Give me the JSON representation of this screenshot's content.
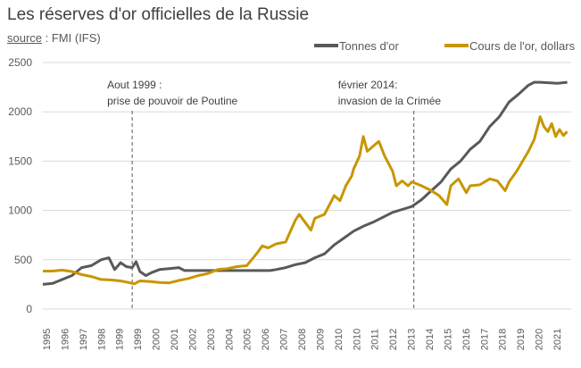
{
  "chart_data": {
    "type": "line",
    "title": "Les réserves d'or officielles de la Russie",
    "source_label": "source",
    "source_value": " : FMI (IFS)",
    "xlabel": "",
    "ylabel": "",
    "ylim": [
      0,
      2500
    ],
    "yticks": [
      0,
      500,
      1000,
      1500,
      2000,
      2500
    ],
    "xlim": [
      1995,
      2022.2
    ],
    "xtick_labels": [
      "1995",
      "1996",
      "1997",
      "1998",
      "1999",
      "1999",
      "2000",
      "2001",
      "2002",
      "2003",
      "2004",
      "2005",
      "2006",
      "2007",
      "2008",
      "2009",
      "2010",
      "2010",
      "2011",
      "2012",
      "2013",
      "2014",
      "2015",
      "2016",
      "2017",
      "2018",
      "2019",
      "2020",
      "2021"
    ],
    "grid": true,
    "legend_position": "top-right",
    "series": [
      {
        "name": "Tonnes d'or",
        "color": "#595959",
        "x": [
          1995,
          1995.5,
          1996,
          1996.5,
          1997,
          1997.5,
          1998,
          1998.4,
          1998.7,
          1999,
          1999.3,
          1999.6,
          1999.8,
          2000,
          2000.3,
          2000.6,
          2001,
          2001.5,
          2002,
          2002.3,
          2003,
          2004,
          2005,
          2006,
          2006.7,
          2007,
          2007.5,
          2008,
          2008.5,
          2009,
          2009.5,
          2010,
          2010.5,
          2011,
          2011.5,
          2012,
          2012.5,
          2013,
          2013.5,
          2014,
          2014.5,
          2015,
          2015.5,
          2016,
          2016.5,
          2017,
          2017.5,
          2018,
          2018.5,
          2019,
          2019.5,
          2020,
          2020.3,
          2020.6,
          2021,
          2021.5,
          2022
        ],
        "values": [
          250,
          260,
          300,
          340,
          420,
          440,
          500,
          520,
          400,
          470,
          430,
          420,
          480,
          380,
          340,
          370,
          400,
          410,
          420,
          390,
          390,
          390,
          390,
          390,
          390,
          400,
          420,
          450,
          470,
          520,
          560,
          650,
          720,
          790,
          840,
          880,
          930,
          980,
          1010,
          1040,
          1110,
          1200,
          1290,
          1420,
          1500,
          1620,
          1700,
          1850,
          1950,
          2100,
          2180,
          2270,
          2300,
          2300,
          2295,
          2290,
          2300
        ]
      },
      {
        "name": "Cours de l'or, dollars",
        "color": "#C89600",
        "x": [
          1995,
          1995.5,
          1996,
          1996.5,
          1997,
          1997.5,
          1998,
          1998.5,
          1999,
          1999.4,
          1999.7,
          2000,
          2000.5,
          2001,
          2001.5,
          2002,
          2002.5,
          2003,
          2003.5,
          2004,
          2004.5,
          2005,
          2005.5,
          2006,
          2006.3,
          2006.6,
          2007,
          2007.5,
          2008,
          2008.2,
          2008.5,
          2008.8,
          2009,
          2009.5,
          2010,
          2010.3,
          2010.6,
          2010.9,
          2011,
          2011.3,
          2011.5,
          2011.7,
          2012,
          2012.3,
          2012.6,
          2013,
          2013.2,
          2013.5,
          2013.8,
          2014,
          2014.5,
          2015,
          2015.4,
          2015.8,
          2016,
          2016.4,
          2016.8,
          2017,
          2017.5,
          2018,
          2018.4,
          2018.8,
          2019,
          2019.4,
          2019.7,
          2020,
          2020.3,
          2020.6,
          2020.8,
          2021,
          2021.2,
          2021.4,
          2021.6,
          2021.8,
          2022
        ],
        "values": [
          385,
          385,
          395,
          380,
          350,
          330,
          300,
          295,
          285,
          270,
          255,
          285,
          280,
          270,
          265,
          290,
          310,
          340,
          360,
          400,
          410,
          430,
          440,
          560,
          640,
          620,
          660,
          680,
          900,
          960,
          880,
          800,
          920,
          960,
          1150,
          1100,
          1250,
          1350,
          1420,
          1550,
          1750,
          1600,
          1650,
          1700,
          1550,
          1400,
          1250,
          1300,
          1250,
          1290,
          1250,
          1200,
          1150,
          1060,
          1250,
          1320,
          1180,
          1250,
          1260,
          1320,
          1300,
          1200,
          1290,
          1400,
          1500,
          1600,
          1720,
          1950,
          1850,
          1800,
          1880,
          1750,
          1820,
          1760,
          1800
        ]
      }
    ],
    "annotations": [
      {
        "x": 1999.6,
        "lines": [
          "Aout 1999 :",
          "prise de pouvoir de Poutine"
        ]
      },
      {
        "x": 2014.1,
        "lines": [
          "février 2014:",
          "invasion de la Crimée"
        ]
      }
    ]
  }
}
